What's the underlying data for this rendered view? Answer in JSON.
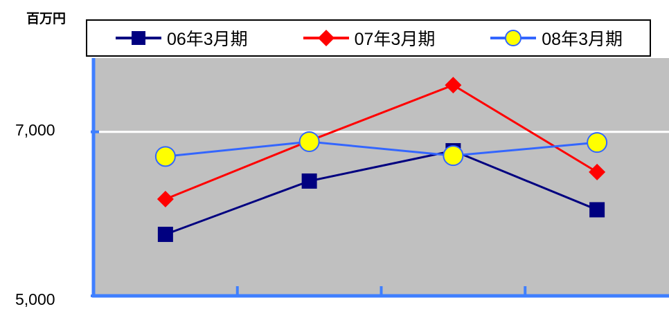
{
  "unit_label": "百万円",
  "y_ticks": [
    {
      "value": 7000,
      "label": "7,000"
    },
    {
      "value": 5000,
      "label": "5,000"
    }
  ],
  "colors": {
    "plot_background": "#c0c0c0",
    "axis": "#3f7fff",
    "gridline": "#ffffff"
  },
  "chart_data": {
    "type": "line",
    "title": "",
    "xlabel": "",
    "ylabel": "百万円",
    "ylim": [
      5000,
      7900
    ],
    "categories": [
      "",
      "",
      "",
      ""
    ],
    "grid": true,
    "legend_position": "top",
    "series": [
      {
        "name": "06年3月期",
        "values": [
          5750,
          6400,
          6770,
          6050
        ],
        "color": "#000080",
        "marker": "square",
        "marker_fill": "#000080"
      },
      {
        "name": "07年3月期",
        "values": [
          6180,
          6890,
          7570,
          6510
        ],
        "color": "#ff0000",
        "marker": "diamond",
        "marker_fill": "#ff0000"
      },
      {
        "name": "08年3月期",
        "values": [
          6700,
          6880,
          6710,
          6870
        ],
        "color": "#3366ff",
        "marker": "circle",
        "marker_fill": "#ffff00"
      }
    ]
  }
}
